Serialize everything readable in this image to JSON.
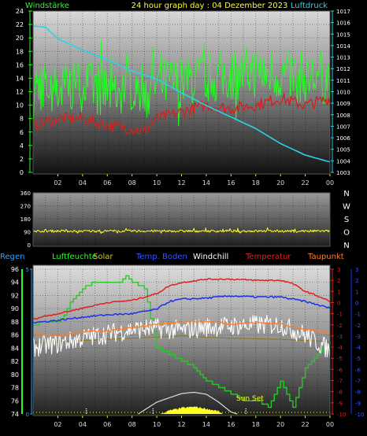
{
  "top_header": {
    "left_label": "Windstärke",
    "title": "24 hour graph day : 04 Dezember 2023",
    "right_label": "Luftdruck"
  },
  "legend": {
    "regen": "Regen",
    "luftfeuchte": "Luftfeuchte",
    "solar": "Solar",
    "temp_boden": "Temp. Boden",
    "windchill": "Windchill",
    "temperatur": "Temperatur",
    "taupunkt": "Taupunkt"
  },
  "annotation": {
    "sun_set": "Sun Set"
  },
  "colors": {
    "wind": "#22ff22",
    "wind_avg": "#d42020",
    "pressure": "#26d4e6",
    "direction": "#ffff22",
    "luftfeuchte": "#22cc22",
    "temperatur": "#e02020",
    "temp_boden": "#1a33e6",
    "taupunkt": "#ff7f24",
    "windchill": "#ffffff",
    "solar": "#ffff22",
    "regen": "#2aa2ff",
    "ground_curve": "#8a7a2a"
  },
  "chart_data": [
    {
      "type": "line",
      "title": "24 hour graph day : 04 Dezember 2023",
      "x_ticks": [
        "02",
        "04",
        "06",
        "08",
        "10",
        "12",
        "14",
        "16",
        "18",
        "20",
        "22",
        "00"
      ],
      "y_left": {
        "label": "Windstärke",
        "ticks": [
          "0",
          "2",
          "4",
          "6",
          "8",
          "10",
          "12",
          "14",
          "16",
          "18",
          "20",
          "22",
          "24"
        ],
        "lim": [
          0,
          24
        ]
      },
      "y_right": {
        "label": "Luftdruck",
        "ticks": [
          "1003",
          "1004",
          "1005",
          "1006",
          "1007",
          "1008",
          "1009",
          "1010",
          "1011",
          "1012",
          "1013",
          "1014",
          "1015",
          "1016",
          "1017"
        ],
        "lim": [
          1003,
          1017
        ]
      },
      "series": [
        {
          "axis": "left",
          "hours": [
            0,
            2,
            4,
            6,
            8,
            9,
            10,
            12,
            14,
            16,
            18,
            20,
            22,
            24
          ],
          "values": [
            13,
            12.5,
            13,
            12,
            13,
            12.5,
            13,
            13.5,
            14,
            14.5,
            15,
            14.5,
            14,
            14
          ],
          "spread": 4
        },
        {
          "axis": "left",
          "hours": [
            0,
            2,
            4,
            6,
            8,
            9,
            10,
            12,
            14,
            16,
            18,
            20,
            22,
            24
          ],
          "values": [
            7,
            8,
            8,
            7,
            6.5,
            6,
            8,
            9,
            10,
            9.5,
            10,
            11,
            10,
            11
          ]
        },
        {
          "axis": "right",
          "hours": [
            0,
            1,
            2,
            4,
            6,
            8,
            10,
            12,
            14,
            16,
            18,
            20,
            22,
            24
          ],
          "values": [
            1015.7,
            1015.6,
            1014.6,
            1013.6,
            1012.8,
            1011.8,
            1011.1,
            1009.9,
            1008.8,
            1007.8,
            1006.8,
            1005.5,
            1004.5,
            1003.9
          ]
        }
      ]
    },
    {
      "type": "line",
      "y_ticks": [
        "0",
        "90",
        "180",
        "270",
        "360"
      ],
      "ylim": [
        0,
        360
      ],
      "y_right_labels": [
        "N",
        "W",
        "S",
        "O",
        "N"
      ],
      "series": [
        {
          "hours": [
            0,
            24
          ],
          "values": [
            95,
            95
          ],
          "spread": 8
        }
      ]
    },
    {
      "type": "line",
      "x_ticks": [
        "02",
        "04",
        "06",
        "08",
        "10",
        "12",
        "14",
        "16",
        "18",
        "20",
        "22",
        "00"
      ],
      "y_humidity": {
        "ticks": [
          "74",
          "76",
          "78",
          "80",
          "82",
          "84",
          "86",
          "88",
          "90",
          "92",
          "94",
          "96"
        ],
        "lim": [
          74,
          96
        ]
      },
      "y_rain": {
        "ticks": [
          "0",
          "5"
        ],
        "lim": [
          0,
          5
        ]
      },
      "y_temp": {
        "ticks": [
          "3",
          "2",
          "1",
          "0",
          "-1",
          "-2",
          "-3",
          "-4",
          "-5",
          "-6",
          "-7",
          "-8",
          "-9",
          "-10"
        ],
        "lim": [
          -10,
          3
        ]
      },
      "y_temp_blue": {
        "ticks": [
          "3",
          "2",
          "1",
          "0",
          "-1",
          "-2",
          "-3",
          "-4",
          "-5",
          "-6",
          "-7",
          "-8",
          "-9",
          "-10"
        ]
      },
      "series": [
        {
          "axis": "humidity",
          "hours": [
            0,
            1,
            2,
            2.5,
            3,
            4,
            5,
            6,
            7,
            7.5,
            8,
            9,
            10,
            11,
            12,
            13,
            14,
            15,
            16,
            17,
            18,
            19,
            20,
            20.5,
            21,
            22,
            23,
            24
          ],
          "values": [
            87.5,
            88,
            88,
            89,
            91,
            93,
            94,
            94,
            94,
            95,
            94,
            93,
            84,
            83,
            82,
            81,
            79,
            78,
            77,
            76,
            76,
            75,
            79,
            77,
            75,
            81,
            83,
            85
          ]
        },
        {
          "axis": "temp",
          "hours": [
            0,
            1,
            2,
            4,
            6,
            8,
            10,
            11,
            12,
            14,
            16,
            18,
            20,
            21,
            22,
            23,
            24
          ],
          "values": [
            -1.5,
            -1.2,
            -1,
            -0.5,
            0,
            0.2,
            0.8,
            1.5,
            1.8,
            2.1,
            2.1,
            2,
            2,
            1.7,
            1,
            0.6,
            0.1
          ]
        },
        {
          "axis": "temp",
          "hours": [
            0,
            2,
            4,
            6,
            8,
            10,
            11,
            12,
            14,
            16,
            18,
            20,
            22,
            24
          ],
          "values": [
            -1.8,
            -1.6,
            -1.3,
            -1.1,
            -1,
            -0.6,
            0.1,
            0.3,
            0.4,
            0.6,
            0.5,
            0.5,
            0.1,
            -0.5
          ]
        },
        {
          "axis": "temp",
          "hours": [
            0,
            2,
            4,
            6,
            8,
            10,
            12,
            14,
            16,
            18,
            20,
            22,
            24
          ],
          "values": [
            -2.7,
            -3,
            -2.6,
            -2.6,
            -2.2,
            -2,
            -1.7,
            -1.7,
            -1.9,
            -1.8,
            -1.9,
            -2.4,
            -2.7
          ]
        },
        {
          "axis": "temp",
          "hours": [
            0,
            2,
            4,
            6,
            8,
            10,
            12,
            14,
            16,
            18,
            20,
            22,
            24
          ],
          "values": [
            -4,
            -3.7,
            -3.2,
            -2.8,
            -2.4,
            -2.3,
            -2.5,
            -2.2,
            -2.1,
            -2,
            -2,
            -2.9,
            -4.3
          ],
          "spread": 0.9
        },
        {
          "axis": "temp",
          "hours": [
            0,
            4,
            8,
            12,
            16,
            20,
            24
          ],
          "values": [
            -3.6,
            -3.4,
            -3.2,
            -3,
            -3.2,
            -3.3,
            -3.5
          ]
        },
        {
          "axis": "humidity",
          "hours": [
            8.5,
            10,
            12,
            13,
            14,
            15,
            16,
            16.5
          ],
          "values": [
            74,
            75.8,
            77.1,
            77.3,
            77,
            75.8,
            74.3,
            74
          ]
        },
        {
          "axis": "humidity",
          "hours": [
            10.3,
            11,
            12,
            13,
            14,
            15,
            15.3
          ],
          "values": [
            74,
            74.5,
            74.9,
            75.1,
            74.8,
            74.4,
            74
          ]
        }
      ]
    }
  ]
}
